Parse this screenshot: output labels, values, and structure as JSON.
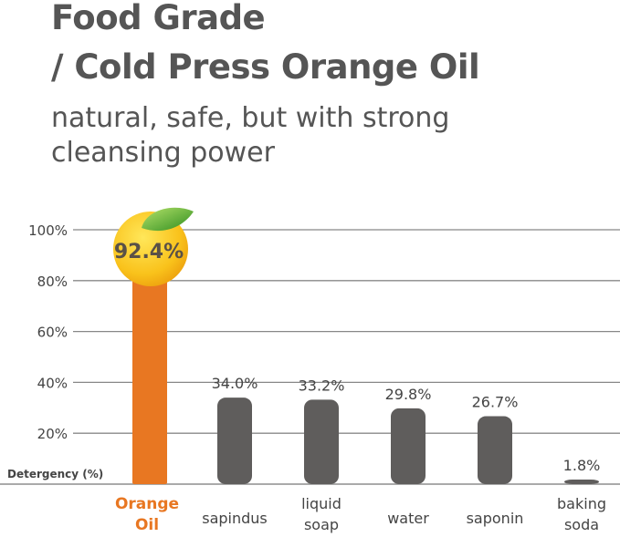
{
  "header": {
    "title_line1": "Food Grade",
    "title_line2": "/ Cold Press Orange Oil",
    "subtitle_line1": "natural, safe, but with strong",
    "subtitle_line2": "cleansing power"
  },
  "chart_data": {
    "type": "bar",
    "ylabel": "Detergency (%)",
    "ylim": [
      0,
      100
    ],
    "yticks": [
      "20%",
      "40%",
      "60%",
      "80%",
      "100%"
    ],
    "grid": true,
    "categories": [
      "Orange Oil",
      "sapindus",
      "liquid soap",
      "water",
      "saponin",
      "baking soda"
    ],
    "values": [
      92.4,
      34.0,
      33.2,
      29.8,
      26.7,
      1.8
    ],
    "data_labels": [
      "92.4%",
      "34.0%",
      "33.2%",
      "29.8%",
      "26.7%",
      "1.8%"
    ],
    "colors": {
      "highlight": "#E87722",
      "bar": "#5F5D5C",
      "highlight_label": "#E87722",
      "text": "#444444"
    }
  }
}
